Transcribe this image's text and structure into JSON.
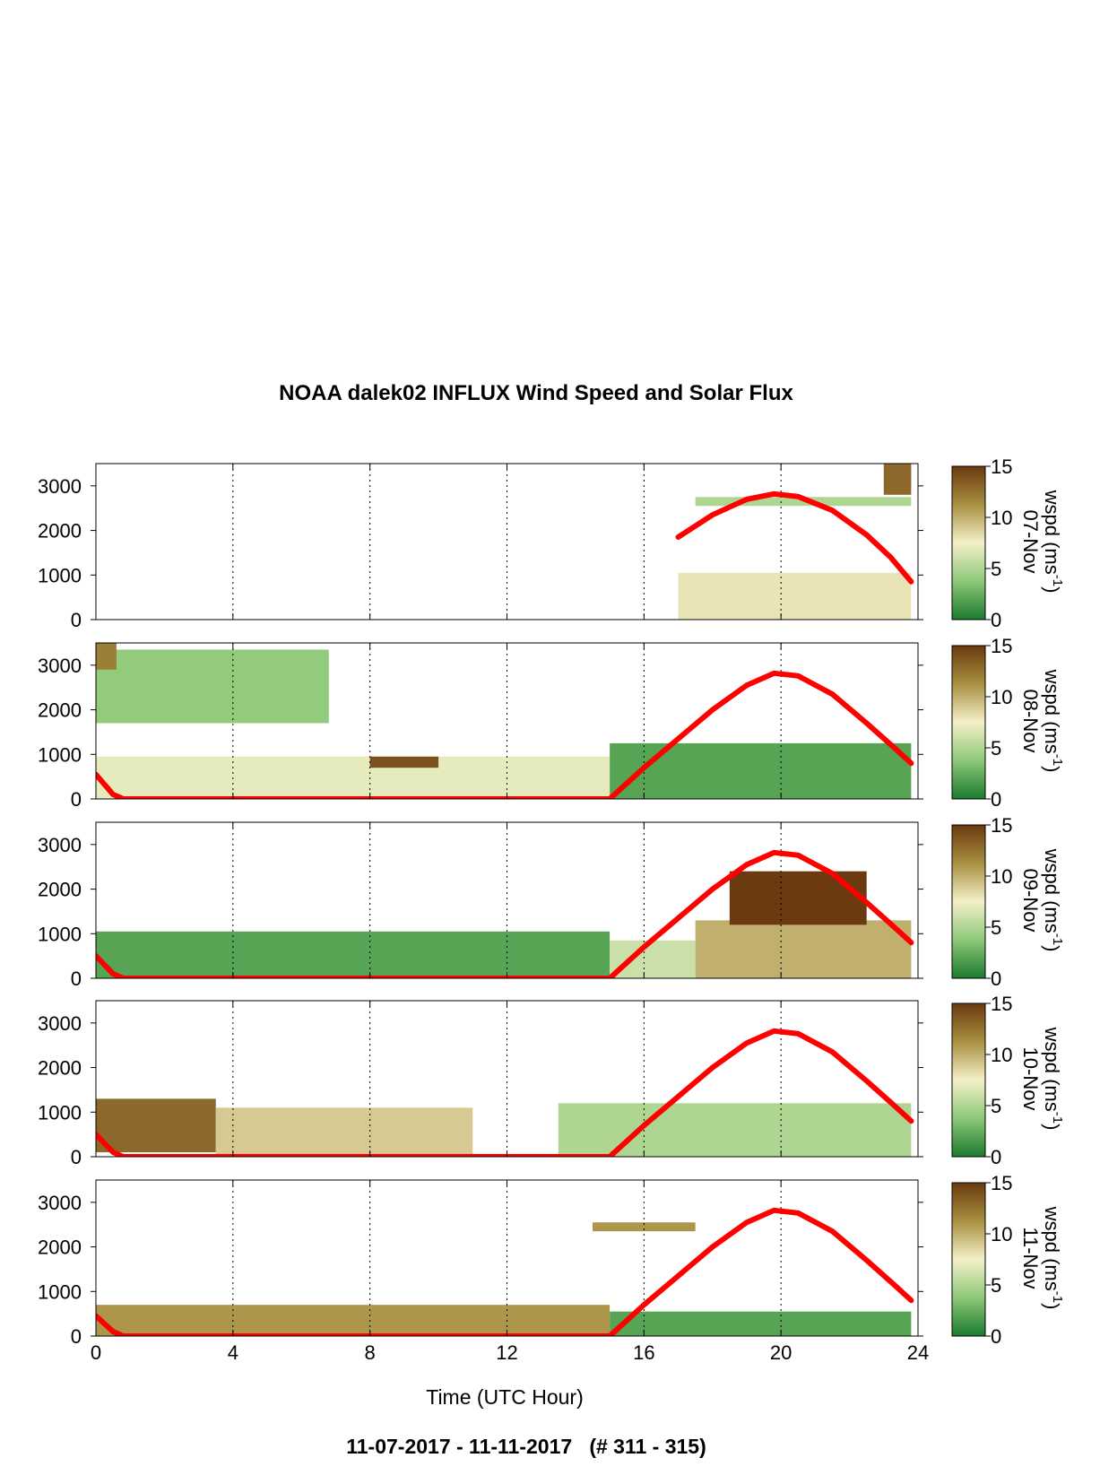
{
  "title": "NOAA dalek02 INFLUX Wind Speed and Solar Flux",
  "xlabel": "Time (UTC Hour)",
  "footer": "11-07-2017 - 11-11-2017   (# 311 - 315)",
  "colorbar": {
    "label": "wspd (ms",
    "unit_exp": "-1",
    "label_close": ")",
    "min": 0,
    "max": 15,
    "ticks": [
      "0",
      "5",
      "10",
      "15"
    ]
  },
  "chart_data": {
    "type": "heatmap",
    "x_ticks": [
      "0",
      "4",
      "8",
      "12",
      "16",
      "20",
      "24"
    ],
    "y_ticks": [
      "0",
      "1000",
      "2000",
      "3000"
    ],
    "xlim": [
      0,
      24
    ],
    "ylim": [
      0,
      3500
    ],
    "colormap": [
      "#1a7a2e",
      "#8cc878",
      "#f4f0c8",
      "#a89040",
      "#6b3a10"
    ],
    "solar_flux_color": "#ff0000",
    "panels": [
      {
        "day": "07-Nov",
        "solar_curve": [
          [
            17,
            1850
          ],
          [
            18,
            2350
          ],
          [
            19,
            2700
          ],
          [
            19.8,
            2820
          ],
          [
            20.5,
            2760
          ],
          [
            21.5,
            2450
          ],
          [
            22.5,
            1900
          ],
          [
            23.2,
            1400
          ],
          [
            23.8,
            850
          ]
        ],
        "regions": [
          {
            "x0": 17,
            "x1": 23.8,
            "y0": 0,
            "y1": 1050,
            "v": 8
          },
          {
            "x0": 17.5,
            "x1": 23.8,
            "y0": 2550,
            "y1": 2750,
            "v": 5
          },
          {
            "x0": 23,
            "x1": 23.8,
            "y0": 2800,
            "y1": 3500,
            "v": 13
          }
        ]
      },
      {
        "day": "08-Nov",
        "solar_curve": [
          [
            0,
            550
          ],
          [
            0.5,
            100
          ],
          [
            0.8,
            0
          ],
          [
            15,
            0
          ],
          [
            16,
            700
          ],
          [
            17,
            1350
          ],
          [
            18,
            2000
          ],
          [
            19,
            2550
          ],
          [
            19.8,
            2820
          ],
          [
            20.5,
            2760
          ],
          [
            21.5,
            2350
          ],
          [
            22.5,
            1700
          ],
          [
            23.3,
            1150
          ],
          [
            23.8,
            800
          ]
        ],
        "regions": [
          {
            "x0": 0,
            "x1": 6.8,
            "y0": 1700,
            "y1": 3350,
            "v": 4
          },
          {
            "x0": 0,
            "x1": 0.6,
            "y0": 2900,
            "y1": 3500,
            "v": 12
          },
          {
            "x0": 0,
            "x1": 15,
            "y0": 0,
            "y1": 950,
            "v": 7
          },
          {
            "x0": 8,
            "x1": 10,
            "y0": 700,
            "y1": 950,
            "v": 14
          },
          {
            "x0": 15,
            "x1": 23.8,
            "y0": 0,
            "y1": 1250,
            "v": 2
          }
        ]
      },
      {
        "day": "09-Nov",
        "solar_curve": [
          [
            0,
            500
          ],
          [
            0.5,
            100
          ],
          [
            0.8,
            0
          ],
          [
            15,
            0
          ],
          [
            16,
            700
          ],
          [
            17,
            1350
          ],
          [
            18,
            2000
          ],
          [
            19,
            2550
          ],
          [
            19.8,
            2820
          ],
          [
            20.5,
            2760
          ],
          [
            21.5,
            2350
          ],
          [
            22.5,
            1700
          ],
          [
            23.3,
            1150
          ],
          [
            23.8,
            800
          ]
        ],
        "regions": [
          {
            "x0": 0,
            "x1": 15,
            "y0": 0,
            "y1": 1050,
            "v": 2
          },
          {
            "x0": 15,
            "x1": 17.5,
            "y0": 0,
            "y1": 850,
            "v": 6
          },
          {
            "x0": 17.5,
            "x1": 23.8,
            "y0": 0,
            "y1": 1300,
            "v": 10
          },
          {
            "x0": 18.5,
            "x1": 22.5,
            "y0": 1200,
            "y1": 2400,
            "v": 15
          }
        ]
      },
      {
        "day": "10-Nov",
        "solar_curve": [
          [
            0,
            500
          ],
          [
            0.5,
            100
          ],
          [
            0.8,
            0
          ],
          [
            15,
            0
          ],
          [
            16,
            700
          ],
          [
            17,
            1350
          ],
          [
            18,
            2000
          ],
          [
            19,
            2550
          ],
          [
            19.8,
            2820
          ],
          [
            20.5,
            2760
          ],
          [
            21.5,
            2350
          ],
          [
            22.5,
            1700
          ],
          [
            23.3,
            1150
          ],
          [
            23.8,
            800
          ]
        ],
        "regions": [
          {
            "x0": 0,
            "x1": 3.5,
            "y0": 100,
            "y1": 1300,
            "v": 13
          },
          {
            "x0": 3.5,
            "x1": 11,
            "y0": 0,
            "y1": 1100,
            "v": 9
          },
          {
            "x0": 13.5,
            "x1": 23.8,
            "y0": 0,
            "y1": 1200,
            "v": 5
          }
        ]
      },
      {
        "day": "11-Nov",
        "solar_curve": [
          [
            0,
            450
          ],
          [
            0.5,
            100
          ],
          [
            0.8,
            0
          ],
          [
            15,
            0
          ],
          [
            16,
            700
          ],
          [
            17,
            1350
          ],
          [
            18,
            2000
          ],
          [
            19,
            2550
          ],
          [
            19.8,
            2820
          ],
          [
            20.5,
            2760
          ],
          [
            21.5,
            2350
          ],
          [
            22.5,
            1700
          ],
          [
            23.3,
            1150
          ],
          [
            23.8,
            800
          ]
        ],
        "regions": [
          {
            "x0": 0,
            "x1": 15,
            "y0": 0,
            "y1": 700,
            "v": 11
          },
          {
            "x0": 15,
            "x1": 23.8,
            "y0": 0,
            "y1": 550,
            "v": 2
          },
          {
            "x0": 14.5,
            "x1": 17.5,
            "y0": 2350,
            "y1": 2550,
            "v": 11
          }
        ]
      }
    ]
  }
}
